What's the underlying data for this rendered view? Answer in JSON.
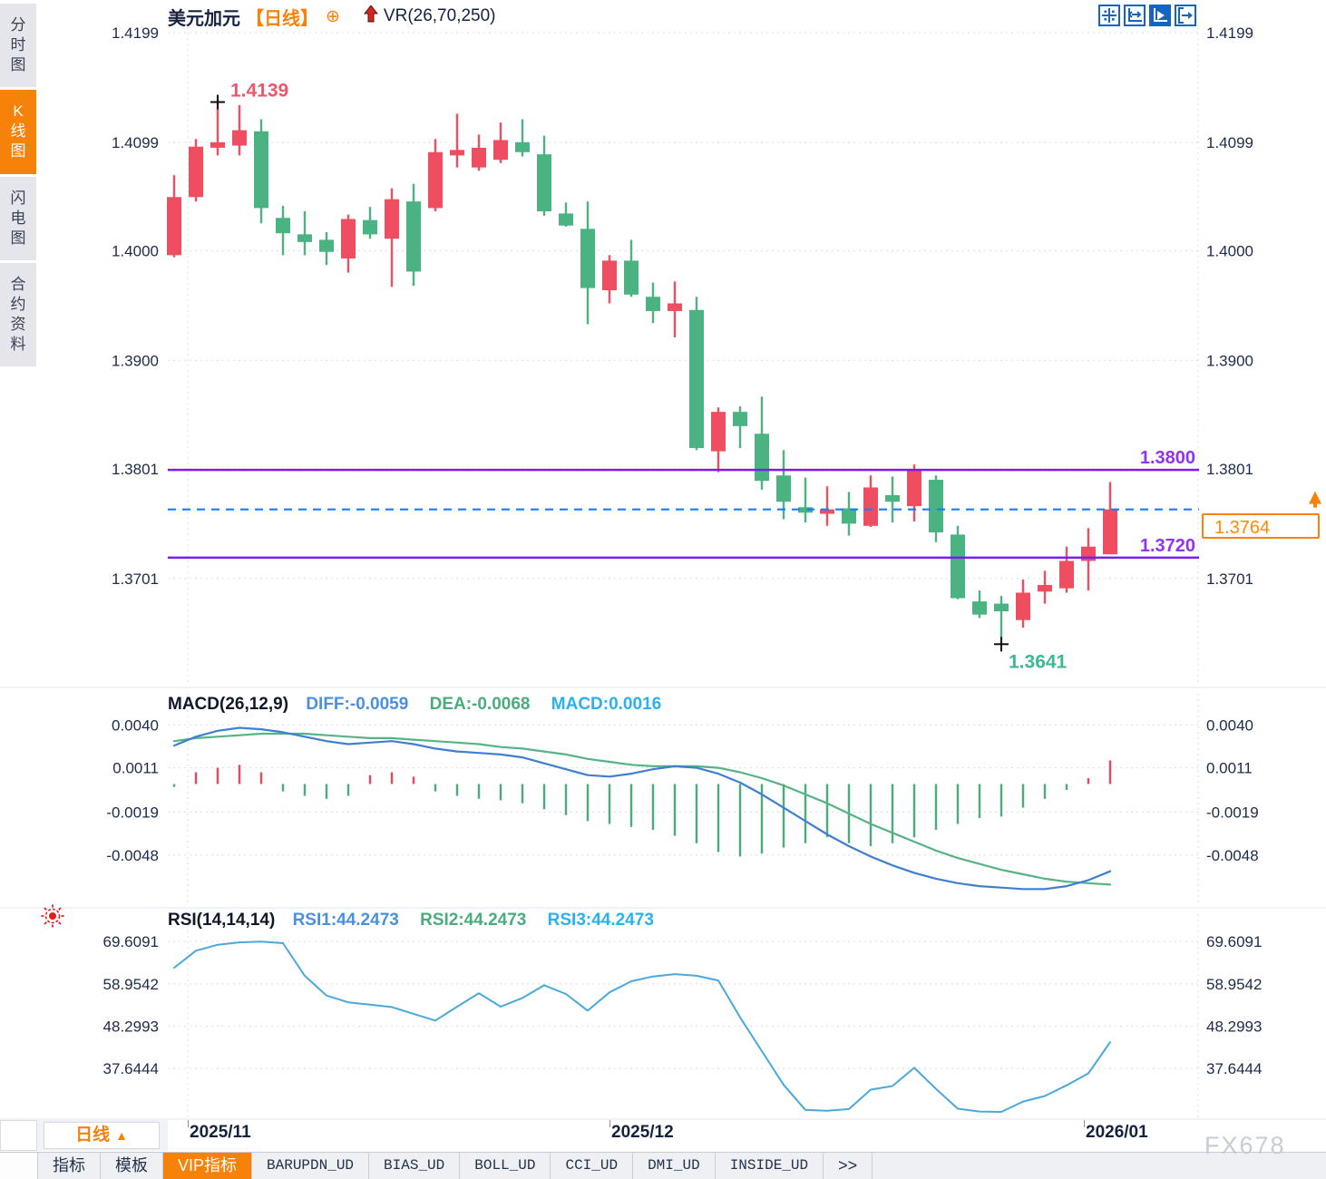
{
  "window": {
    "watermark": "FX678"
  },
  "sidebar": {
    "tabs": [
      {
        "key": "timeshare",
        "label": "分时图",
        "active": false
      },
      {
        "key": "kline",
        "label": "K线图",
        "active": true
      },
      {
        "key": "lightning",
        "label": "闪电图",
        "active": false
      },
      {
        "key": "contract-info",
        "label": "合约资料",
        "active": false
      }
    ]
  },
  "header": {
    "symbol": "美元加元",
    "period_tag": "【日线】",
    "link_icon": "circle-plus",
    "arrow_icon": "red-up-arrow",
    "indicator": "VR(26,70,250)"
  },
  "toolbar_icons": [
    {
      "name": "crosshair-move"
    },
    {
      "name": "axis-scale"
    },
    {
      "name": "axis-autoscroll",
      "active": true
    },
    {
      "name": "pan-right"
    }
  ],
  "period_button": {
    "label": "日线",
    "arrow": "▲"
  },
  "x_axis": {
    "labels": [
      {
        "text": "2025/11"
      },
      {
        "text": "2025/12"
      },
      {
        "text": "2026/01"
      }
    ]
  },
  "bottom_tabs": {
    "items": [
      {
        "key": "indicators",
        "label": "指标"
      },
      {
        "key": "templates",
        "label": "模板"
      },
      {
        "key": "vip-indicators",
        "label": "VIP指标",
        "active": true
      },
      {
        "key": "barupdn_ud",
        "label": "BARUPDN_UD",
        "mono": true
      },
      {
        "key": "bias_ud",
        "label": "BIAS_UD",
        "mono": true
      },
      {
        "key": "boll_ud",
        "label": "BOLL_UD",
        "mono": true
      },
      {
        "key": "cci_ud",
        "label": "CCI_UD",
        "mono": true
      },
      {
        "key": "dmi_ud",
        "label": "DMI_UD",
        "mono": true
      },
      {
        "key": "inside_ud",
        "label": "INSIDE_UD",
        "mono": true
      },
      {
        "key": "more",
        "label": ">>"
      }
    ]
  },
  "colors": {
    "up": "#ee4e5f",
    "down": "#4bb282",
    "purple_line": "#7d1ce8",
    "purple_label": "#9333f2",
    "dashed_blue": "#1c7df0",
    "orange": "#f7820a",
    "price_text": "#ff8a00",
    "diff_line": "#3f7fd0",
    "dea_line": "#55b386",
    "rsi_line": "#4aa8dc",
    "hist_up": "#e8475c",
    "hist_down": "#4cab7d",
    "axis_text": "#1c2b4a",
    "grid": "#dcdce2",
    "high_label": "#f0556e",
    "low_label": "#3db897"
  },
  "chart_data": [
    {
      "type": "candlestick",
      "title": "美元加元 日线",
      "y_ticks": [
        "1.4199",
        "1.4099",
        "1.4000",
        "1.3900",
        "1.3801",
        "1.3701"
      ],
      "ylim": [
        1.3604,
        1.4204
      ],
      "candles": [
        [
          1.3996,
          1.4069,
          1.3994,
          1.4049
        ],
        [
          1.4049,
          1.4102,
          1.4045,
          1.4095
        ],
        [
          1.4094,
          1.4139,
          1.4087,
          1.4099
        ],
        [
          1.4096,
          1.4133,
          1.4087,
          1.411
        ],
        [
          1.4109,
          1.412,
          1.4025,
          1.4039
        ],
        [
          1.403,
          1.4041,
          1.3996,
          1.4016
        ],
        [
          1.4015,
          1.4036,
          1.3996,
          1.4008
        ],
        [
          1.401,
          1.4017,
          1.3987,
          1.3999
        ],
        [
          1.3993,
          1.4033,
          1.398,
          1.4029
        ],
        [
          1.4028,
          1.404,
          1.4011,
          1.4015
        ],
        [
          1.4011,
          1.4057,
          1.3967,
          1.4047
        ],
        [
          1.4045,
          1.4061,
          1.3968,
          1.3981
        ],
        [
          1.4039,
          1.4102,
          1.4036,
          1.409
        ],
        [
          1.4087,
          1.4125,
          1.4076,
          1.4092
        ],
        [
          1.4076,
          1.4106,
          1.4073,
          1.4094
        ],
        [
          1.4083,
          1.4117,
          1.408,
          1.4101
        ],
        [
          1.4099,
          1.412,
          1.4086,
          1.409
        ],
        [
          1.4088,
          1.4105,
          1.4032,
          1.4036
        ],
        [
          1.4034,
          1.4044,
          1.4022,
          1.4023
        ],
        [
          1.402,
          1.4045,
          1.3933,
          1.3966
        ],
        [
          1.3964,
          1.3996,
          1.3952,
          1.3991
        ],
        [
          1.3991,
          1.401,
          1.3958,
          1.396
        ],
        [
          1.3958,
          1.3971,
          1.3934,
          1.3945
        ],
        [
          1.3945,
          1.3972,
          1.3921,
          1.3952
        ],
        [
          1.3946,
          1.3958,
          1.3818,
          1.382
        ],
        [
          1.3817,
          1.3857,
          1.3798,
          1.3853
        ],
        [
          1.3853,
          1.3858,
          1.382,
          1.384
        ],
        [
          1.3833,
          1.3867,
          1.3782,
          1.379
        ],
        [
          1.3795,
          1.3818,
          1.3755,
          1.3771
        ],
        [
          1.3766,
          1.3793,
          1.3752,
          1.3761
        ],
        [
          1.376,
          1.3785,
          1.3749,
          1.3764
        ],
        [
          1.3765,
          1.378,
          1.374,
          1.3751
        ],
        [
          1.3749,
          1.3795,
          1.3748,
          1.3784
        ],
        [
          1.3777,
          1.3794,
          1.3752,
          1.3771
        ],
        [
          1.3767,
          1.3805,
          1.3753,
          1.3801
        ],
        [
          1.3791,
          1.3795,
          1.3734,
          1.3743
        ],
        [
          1.3741,
          1.3749,
          1.3682,
          1.3683
        ],
        [
          1.368,
          1.369,
          1.3665,
          1.3668
        ],
        [
          1.3678,
          1.3685,
          1.3641,
          1.3671
        ],
        [
          1.3663,
          1.37,
          1.3656,
          1.3688
        ],
        [
          1.3689,
          1.3708,
          1.3678,
          1.3695
        ],
        [
          1.3692,
          1.373,
          1.3688,
          1.3717
        ],
        [
          1.3717,
          1.3747,
          1.369,
          1.373
        ],
        [
          1.3723,
          1.3789,
          1.3723,
          1.3764
        ]
      ],
      "annotations": {
        "high": {
          "index": 2,
          "price": 1.4139,
          "label": "1.4139"
        },
        "low": {
          "index": 38,
          "price": 1.3641,
          "label": "1.3641"
        },
        "hlines": [
          {
            "price": 1.38,
            "label": "1.3800"
          },
          {
            "price": 1.372,
            "label": "1.3720"
          }
        ],
        "current_price": {
          "value": 1.3764,
          "label": "1.3764"
        }
      }
    },
    {
      "type": "macd",
      "params": "MACD(26,12,9)",
      "labels": {
        "diff": "DIFF:-0.0059",
        "dea": "DEA:-0.0068",
        "macd": "MACD:0.0016"
      },
      "y_ticks": [
        "0.0040",
        "0.0011",
        "-0.0019",
        "-0.0048"
      ],
      "ylim": [
        -0.008,
        0.0061
      ],
      "diff": [
        0.0026,
        0.0032,
        0.0036,
        0.0038,
        0.0037,
        0.0035,
        0.0032,
        0.0029,
        0.0027,
        0.0028,
        0.0029,
        0.0027,
        0.0024,
        0.0022,
        0.0021,
        0.002,
        0.0018,
        0.0014,
        0.001,
        0.0006,
        0.0005,
        0.0007,
        0.001,
        0.0012,
        0.0011,
        0.0007,
        0.0001,
        -0.0007,
        -0.0016,
        -0.0025,
        -0.0034,
        -0.0042,
        -0.0049,
        -0.0055,
        -0.006,
        -0.0064,
        -0.0067,
        -0.0069,
        -0.007,
        -0.0071,
        -0.0071,
        -0.0069,
        -0.0065,
        -0.0059
      ],
      "dea": [
        0.0029,
        0.0031,
        0.0032,
        0.0033,
        0.0034,
        0.0034,
        0.0034,
        0.0033,
        0.0032,
        0.0031,
        0.0031,
        0.003,
        0.0029,
        0.0028,
        0.0027,
        0.0025,
        0.0024,
        0.0022,
        0.002,
        0.0017,
        0.0015,
        0.0013,
        0.0012,
        0.0012,
        0.0012,
        0.0011,
        0.0008,
        0.0004,
        -0.0001,
        -0.0007,
        -0.0013,
        -0.002,
        -0.0027,
        -0.0033,
        -0.0039,
        -0.0045,
        -0.005,
        -0.0054,
        -0.0058,
        -0.0061,
        -0.0064,
        -0.0066,
        -0.0067,
        -0.0068
      ],
      "hist": [
        -0.0002,
        0.0008,
        0.0011,
        0.0013,
        0.0008,
        -0.0005,
        -0.0008,
        -0.001,
        -0.0008,
        0.0006,
        0.0008,
        0.0005,
        -0.0005,
        -0.0008,
        -0.001,
        -0.0011,
        -0.0013,
        -0.0017,
        -0.0021,
        -0.0025,
        -0.0027,
        -0.0029,
        -0.0031,
        -0.0035,
        -0.004,
        -0.0046,
        -0.0049,
        -0.0047,
        -0.0043,
        -0.004,
        -0.0036,
        -0.004,
        -0.0042,
        -0.004,
        -0.0036,
        -0.0031,
        -0.0027,
        -0.0023,
        -0.0022,
        -0.0016,
        -0.001,
        -0.0004,
        0.0004,
        0.0016
      ]
    },
    {
      "type": "rsi",
      "params": "RSI(14,14,14)",
      "labels": {
        "rsi1": "RSI1:44.2473",
        "rsi2": "RSI2:44.2473",
        "rsi3": "RSI3:44.2473"
      },
      "y_ticks": [
        "69.6091",
        "58.9542",
        "48.2993",
        "37.6444"
      ],
      "ylim": [
        25.1,
        76.5
      ],
      "values": [
        63.0,
        67.3,
        68.8,
        69.4,
        69.6,
        69.2,
        61.0,
        56.0,
        54.3,
        53.7,
        53.1,
        51.4,
        49.7,
        53.2,
        56.6,
        53.2,
        55.4,
        58.6,
        56.4,
        52.2,
        56.8,
        59.6,
        60.8,
        61.4,
        61.0,
        59.8,
        50.5,
        42.0,
        33.5,
        27.2,
        27.0,
        27.4,
        32.3,
        33.2,
        37.8,
        32.5,
        27.5,
        26.8,
        26.7,
        29.3,
        30.7,
        33.4,
        36.4,
        44.2473
      ]
    }
  ]
}
